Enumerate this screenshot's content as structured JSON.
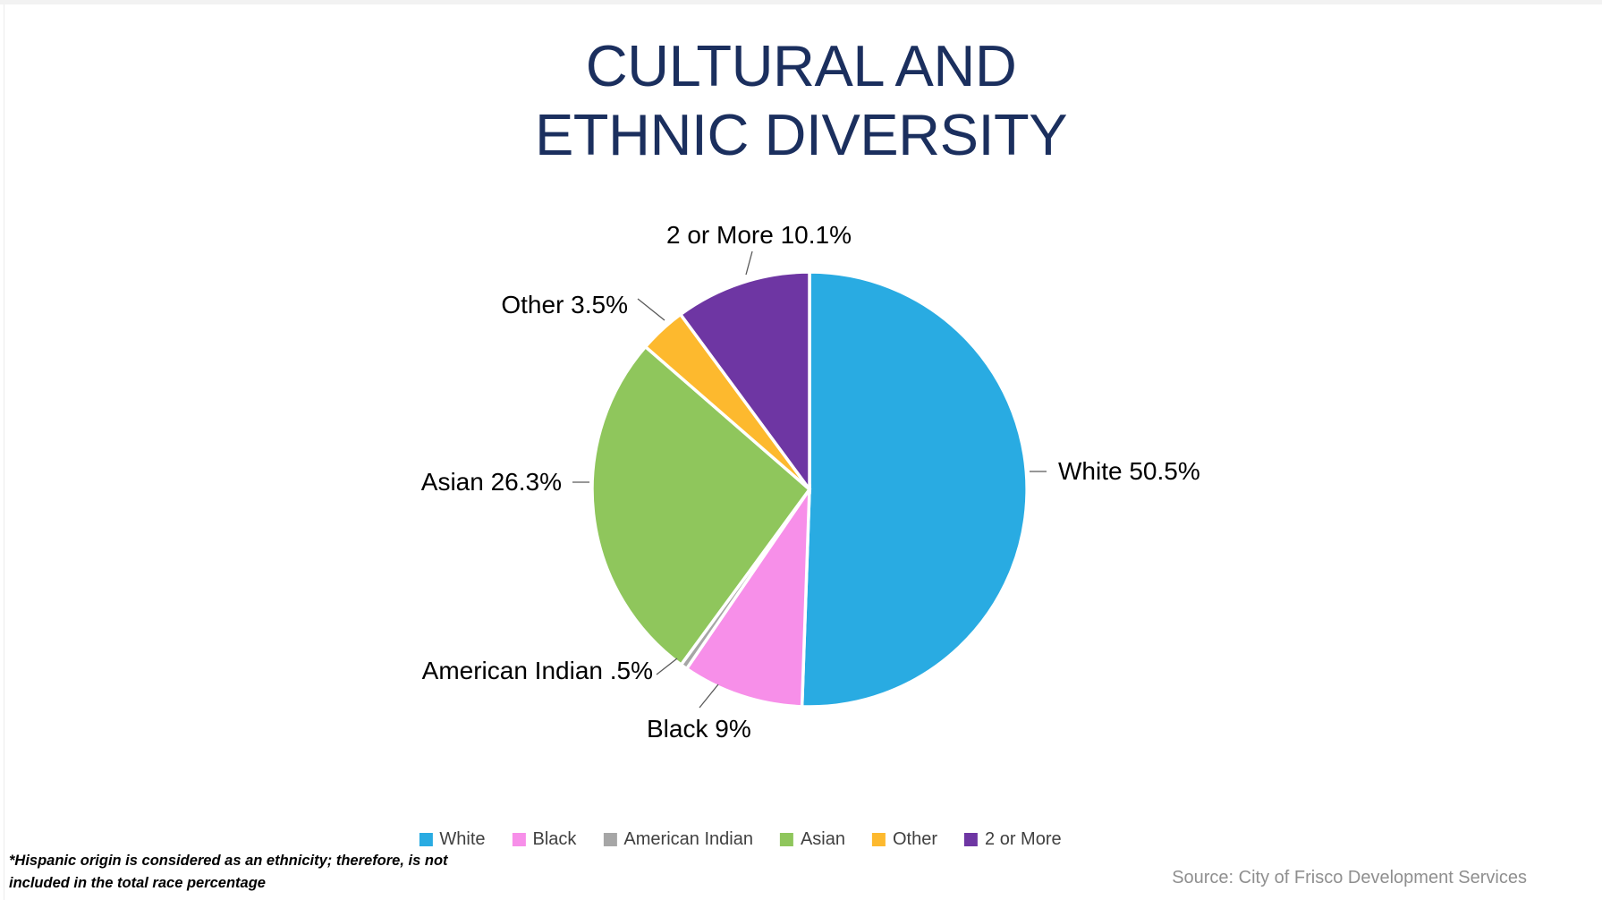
{
  "title": {
    "line1": "CULTURAL AND",
    "line2": "ETHNIC DIVERSITY",
    "color": "#1B2F5E"
  },
  "chart_data": {
    "type": "pie",
    "title": "CULTURAL AND ETHNIC DIVERSITY",
    "categories": [
      "White",
      "Black",
      "American Indian",
      "Asian",
      "Other",
      "2 or More"
    ],
    "values": [
      50.5,
      9,
      0.5,
      26.3,
      3.5,
      10.1
    ],
    "slice_labels": [
      "White 50.5%",
      "Black 9%",
      "American Indian .5%",
      "Asian 26.3%",
      "Other 3.5%",
      "2 or More 10.1%"
    ],
    "colors": [
      "#29ABE2",
      "#F78FE9",
      "#A6A6A6",
      "#8FC65C",
      "#FDB92E",
      "#6E36A3"
    ],
    "start_angle_deg": 0,
    "direction": "clockwise",
    "separator_color": "#ffffff",
    "legend_position": "bottom",
    "leader_line_color": "#595959"
  },
  "labels": {
    "white": "White 50.5%",
    "black": "Black 9%",
    "american_indian": "American Indian .5%",
    "asian": "Asian 26.3%",
    "other": "Other 3.5%",
    "two_or_more": "2 or More 10.1%"
  },
  "footnote": {
    "line1": "*Hispanic origin is considered as an ethnicity; therefore, is not",
    "line2": "included in the total race percentage"
  },
  "source": {
    "text": "Source: City of Frisco Development Services"
  }
}
